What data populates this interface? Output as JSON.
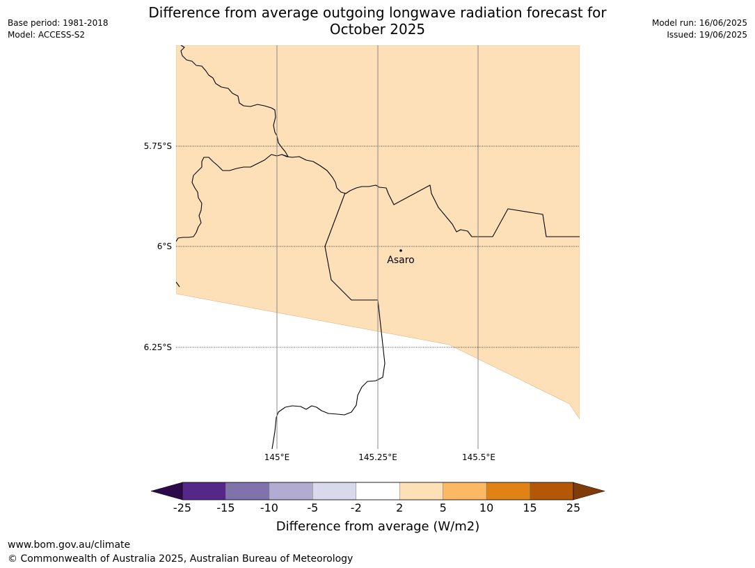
{
  "header": {
    "base_period": "Base period: 1981-2018",
    "model": "Model: ACCESS-S2",
    "title_line1": "Difference from average outgoing longwave radiation forecast for",
    "title_line2": "October 2025",
    "model_run": "Model run: 16/06/2025",
    "issued": "Issued: 19/06/2025"
  },
  "map": {
    "lat_labels": [
      "5.75°S",
      "6°S",
      "6.25°S"
    ],
    "lon_labels": [
      "145°E",
      "145.25°E",
      "145.5°E"
    ],
    "place": "Asaro",
    "fill_color": "#fde0b7",
    "forecast_category": "2 to 5"
  },
  "colorbar": {
    "ticks": [
      "-25",
      "-15",
      "-10",
      "-5",
      "-2",
      "2",
      "5",
      "10",
      "15",
      "25"
    ],
    "colors": [
      "#2d0a4a",
      "#542788",
      "#8073ac",
      "#b2abd2",
      "#d8daeb",
      "#ffffff",
      "#fee0b6",
      "#fdb863",
      "#e08214",
      "#b35806",
      "#7f3b08"
    ],
    "label": "Difference from average (W/m2)"
  },
  "footer": {
    "url": "www.bom.gov.au/climate",
    "copyright": "© Commonwealth of Australia 2025, Australian Bureau of Meteorology"
  }
}
